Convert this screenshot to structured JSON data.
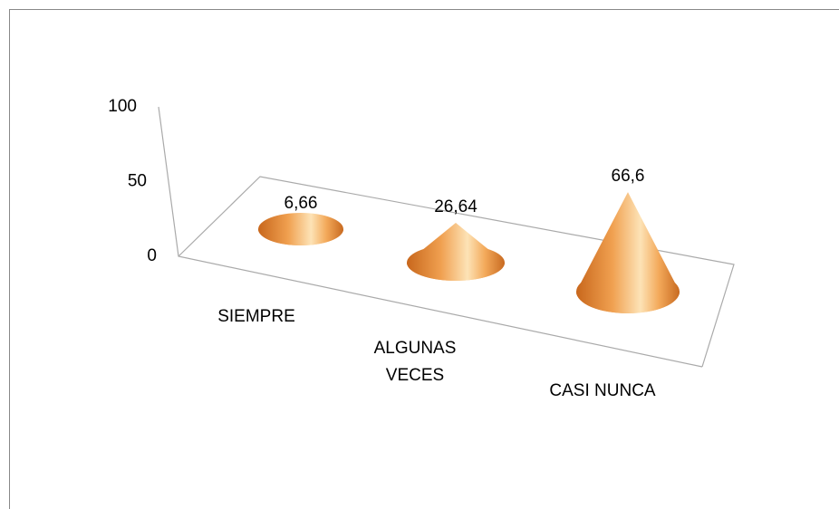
{
  "chart_data": {
    "type": "cone",
    "categories": [
      "SIEMPRE",
      "ALGUNAS VECES",
      "CASI NUNCA"
    ],
    "values": [
      6.66,
      26.64,
      66.6
    ],
    "value_labels": [
      "6,66",
      "26,64",
      "66,6"
    ],
    "color": "#f09848",
    "ylim": [
      0,
      100
    ],
    "yticks": [
      0,
      50,
      100
    ]
  }
}
